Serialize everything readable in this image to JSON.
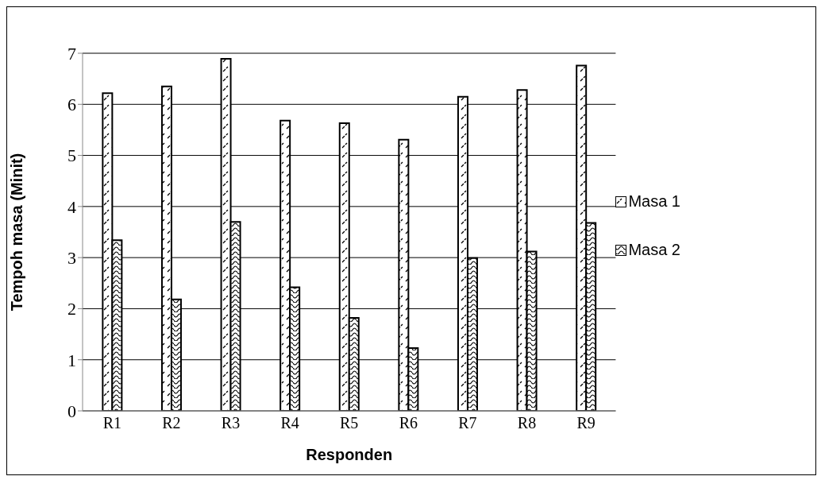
{
  "chart_data": {
    "type": "bar",
    "xlabel": "Responden",
    "ylabel": "Tempoh masa (Minit)",
    "categories": [
      "R1",
      "R2",
      "R3",
      "R4",
      "R5",
      "R6",
      "R7",
      "R8",
      "R9"
    ],
    "series": [
      {
        "name": "Masa 1",
        "color": "#000000",
        "values": [
          6.22,
          6.35,
          6.89,
          5.68,
          5.63,
          5.31,
          6.15,
          6.28,
          6.76
        ]
      },
      {
        "name": "Masa 2",
        "color": "#000000",
        "values": [
          3.34,
          2.18,
          3.7,
          2.42,
          1.82,
          1.23,
          2.99,
          3.12,
          3.68
        ]
      }
    ],
    "ylim": [
      0,
      7
    ],
    "yticks": [
      0,
      1,
      2,
      3,
      4,
      5,
      6,
      7
    ],
    "grid": "y",
    "legend": "right"
  }
}
